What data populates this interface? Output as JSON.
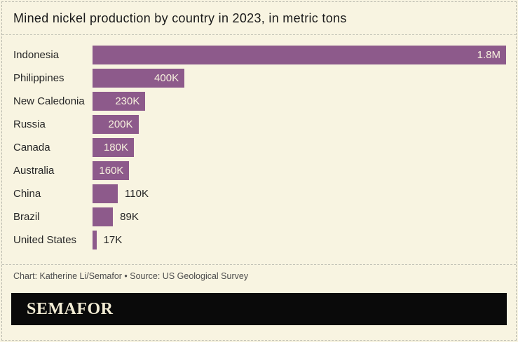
{
  "title": "Mined nickel production by country in 2023, in metric tons",
  "credit": "Chart: Katherine Li/Semafor • Source: US Geological Survey",
  "logo": "SEMAFOR",
  "colors": {
    "background": "#f8f4e1",
    "bar": "#8d5a8b",
    "value_label_inside": "#f7f1de",
    "value_label_outside": "#262626",
    "title_text": "#1a1a1a",
    "credit_text": "#4d4d4d",
    "logo_background": "#0a0a0a",
    "logo_text": "#f2ecd4",
    "dashed_border": "#b7b7ac"
  },
  "chart_data": {
    "type": "bar",
    "orientation": "horizontal",
    "title": "Mined nickel production by country in 2023, in metric tons",
    "unit": "metric tons",
    "categories": [
      "Indonesia",
      "Philippines",
      "New Caledonia",
      "Russia",
      "Canada",
      "Australia",
      "China",
      "Brazil",
      "United States"
    ],
    "values": [
      1800000,
      400000,
      230000,
      200000,
      180000,
      160000,
      110000,
      89000,
      17000
    ],
    "value_labels": [
      "1.8M",
      "400K",
      "230K",
      "200K",
      "180K",
      "160K",
      "110K",
      "89K",
      "17K"
    ],
    "xlim": [
      0,
      1800000
    ],
    "grid": false,
    "legend": false,
    "bar_label_placement_rule": "inside bar right-aligned when bar is wide enough, otherwise outside right of bar"
  }
}
